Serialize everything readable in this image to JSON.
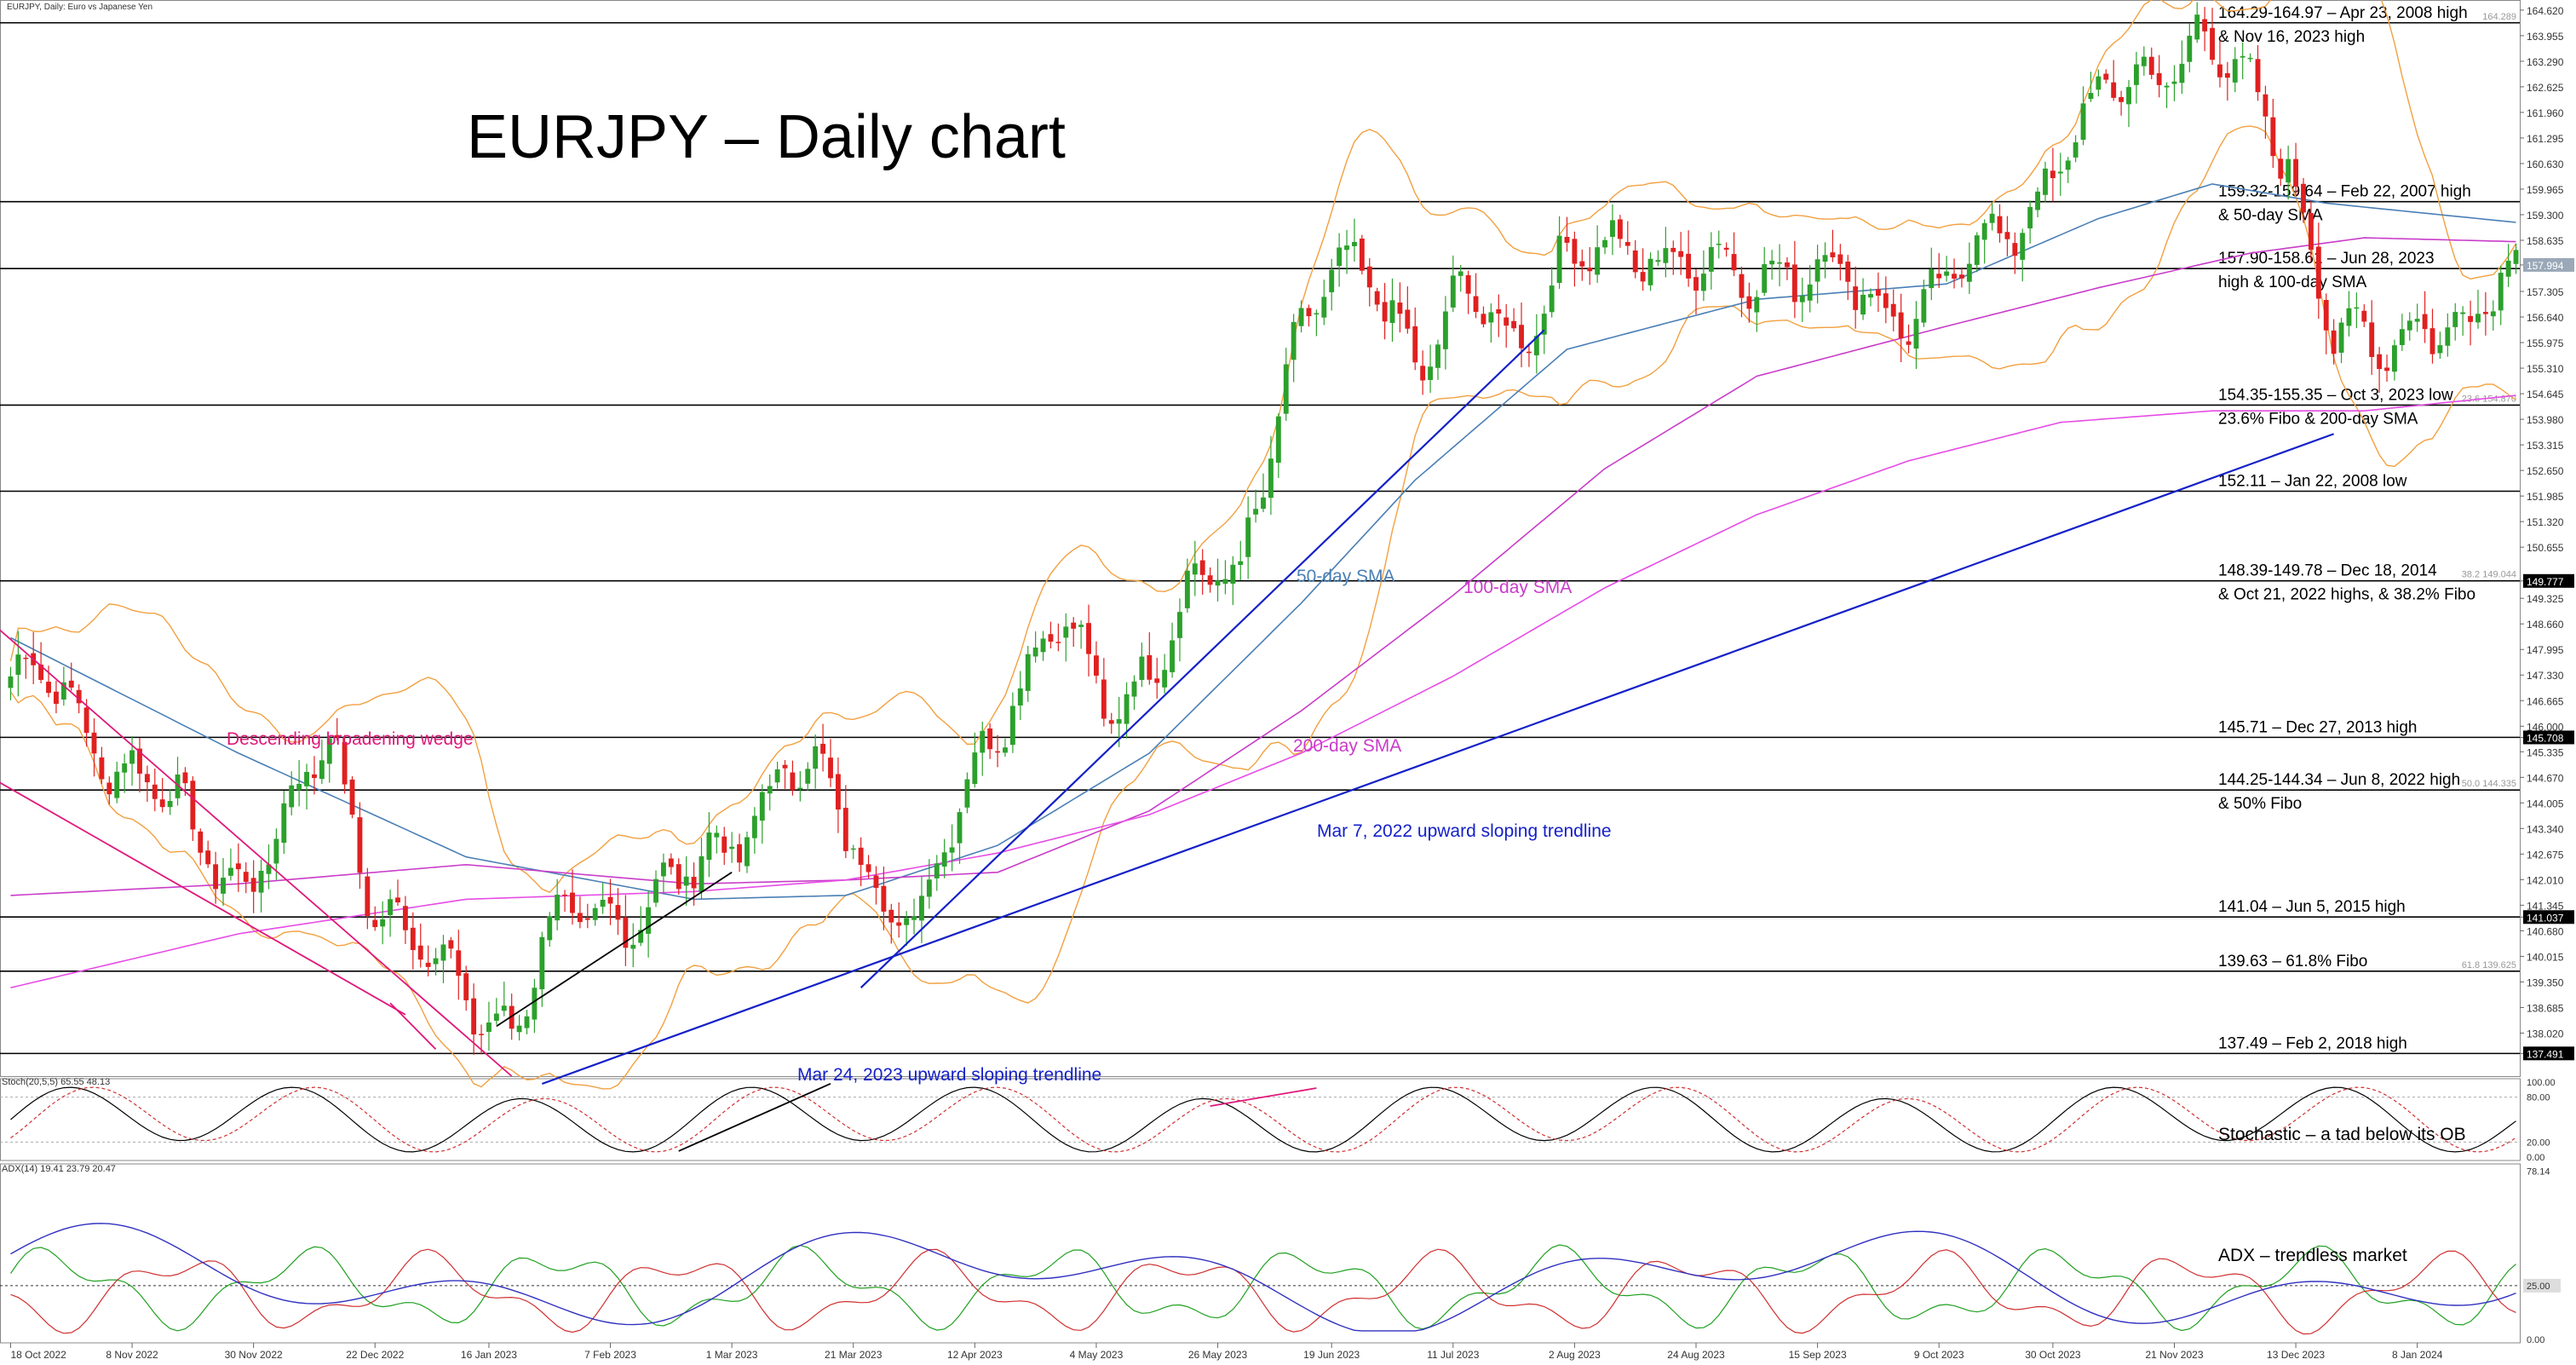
{
  "header": {
    "instrument_label": "EURJPY, Daily:  Euro vs Japanese Yen",
    "big_title": "EURJPY – Daily chart"
  },
  "colors": {
    "background": "#ffffff",
    "bull_candle": "#2ca02c",
    "bear_candle": "#e02020",
    "sma50": "#4a7fb5",
    "sma100": "#c93cc9",
    "sma200": "#e64ce6",
    "bollinger": "#f2a040",
    "trendline_blue": "#1420c8",
    "wedge": "#e0177a",
    "black_line": "#000000",
    "stoch_main": "#000000",
    "stoch_signal": "#d03030",
    "adx_main": "#3030c0",
    "adx_plus": "#20a020",
    "adx_minus": "#d03030"
  },
  "price_axis": {
    "ticks": [
      "164.620",
      "163.955",
      "163.290",
      "162.625",
      "161.960",
      "161.295",
      "160.630",
      "159.965",
      "159.300",
      "158.635",
      "157.994",
      "157.305",
      "156.640",
      "155.975",
      "155.310",
      "154.645",
      "153.980",
      "153.315",
      "152.650",
      "151.985",
      "151.320",
      "150.655",
      "149.777",
      "149.325",
      "148.660",
      "147.995",
      "147.330",
      "146.665",
      "146.000",
      "145.708",
      "145.335",
      "144.670",
      "144.005",
      "143.340",
      "142.675",
      "142.010",
      "141.345",
      "141.037",
      "140.680",
      "140.015",
      "139.350",
      "138.685",
      "138.020",
      "137.491"
    ],
    "highlight_current": "157.994"
  },
  "chart_data": {
    "type": "candlestick",
    "title": "EURJPY – Daily chart",
    "ylim": [
      136.9,
      164.75
    ],
    "x_tick_labels": [
      "18 Oct 2022",
      "8 Nov 2022",
      "30 Nov 2022",
      "22 Dec 2022",
      "16 Jan 2023",
      "7 Feb 2023",
      "1 Mar 2023",
      "21 Mar 2023",
      "12 Apr 2023",
      "4 May 2023",
      "26 May 2023",
      "19 Jun 2023",
      "11 Jul 2023",
      "2 Aug 2023",
      "24 Aug 2023",
      "15 Sep 2023",
      "9 Oct 2023",
      "30 Oct 2023",
      "21 Nov 2023",
      "13 Dec 2023",
      "8 Jan 2024"
    ],
    "close_path": [
      [
        0,
        147.3
      ],
      [
        6,
        146.9
      ],
      [
        12,
        145.5
      ],
      [
        18,
        144.6
      ],
      [
        24,
        143.1
      ],
      [
        30,
        142.1
      ],
      [
        36,
        143.2
      ],
      [
        42,
        145.8
      ],
      [
        48,
        141.5
      ],
      [
        54,
        140.1
      ],
      [
        60,
        139.0
      ],
      [
        66,
        138.3
      ],
      [
        72,
        140.8
      ],
      [
        78,
        141.1
      ],
      [
        84,
        141.5
      ],
      [
        90,
        142.0
      ],
      [
        96,
        143.4
      ],
      [
        102,
        145.0
      ],
      [
        108,
        144.1
      ],
      [
        114,
        142.0
      ],
      [
        120,
        140.9
      ],
      [
        126,
        144.4
      ],
      [
        132,
        147.2
      ],
      [
        138,
        148.7
      ],
      [
        144,
        146.4
      ],
      [
        150,
        147.8
      ],
      [
        156,
        149.4
      ],
      [
        162,
        150.1
      ],
      [
        168,
        155.5
      ],
      [
        174,
        157.5
      ],
      [
        180,
        157.8
      ],
      [
        186,
        155.4
      ],
      [
        192,
        157.1
      ],
      [
        198,
        156.2
      ],
      [
        204,
        157.9
      ],
      [
        210,
        158.2
      ],
      [
        216,
        158.6
      ],
      [
        222,
        157.9
      ],
      [
        228,
        157.5
      ],
      [
        234,
        158.2
      ],
      [
        240,
        157.7
      ],
      [
        246,
        156.7
      ],
      [
        252,
        157.2
      ],
      [
        258,
        158.0
      ],
      [
        264,
        159.0
      ],
      [
        270,
        161.0
      ],
      [
        276,
        162.2
      ],
      [
        282,
        163.1
      ],
      [
        288,
        164.0
      ],
      [
        294,
        162.5
      ],
      [
        300,
        161.0
      ],
      [
        306,
        156.2
      ],
      [
        312,
        155.5
      ],
      [
        318,
        156.9
      ],
      [
        324,
        156.3
      ],
      [
        330,
        157.9
      ]
    ],
    "ohlc": [],
    "series": [
      {
        "name": "50-day SMA",
        "values": [
          [
            0,
            148.3
          ],
          [
            30,
            145.3
          ],
          [
            60,
            142.6
          ],
          [
            90,
            141.5
          ],
          [
            110,
            141.6
          ],
          [
            130,
            142.9
          ],
          [
            150,
            145.3
          ],
          [
            170,
            149.2
          ],
          [
            185,
            152.4
          ],
          [
            205,
            155.8
          ],
          [
            230,
            157.1
          ],
          [
            255,
            157.5
          ],
          [
            275,
            159.2
          ],
          [
            290,
            160.1
          ],
          [
            305,
            159.6
          ],
          [
            330,
            159.1
          ]
        ]
      },
      {
        "name": "100-day SMA",
        "values": [
          [
            0,
            141.6
          ],
          [
            30,
            141.9
          ],
          [
            60,
            142.4
          ],
          [
            90,
            141.9
          ],
          [
            110,
            142.0
          ],
          [
            130,
            142.2
          ],
          [
            150,
            143.8
          ],
          [
            170,
            146.4
          ],
          [
            190,
            149.4
          ],
          [
            210,
            152.7
          ],
          [
            230,
            155.1
          ],
          [
            255,
            156.4
          ],
          [
            275,
            157.4
          ],
          [
            295,
            158.3
          ],
          [
            310,
            158.7
          ],
          [
            330,
            158.6
          ]
        ]
      },
      {
        "name": "200-day SMA",
        "values": [
          [
            0,
            139.2
          ],
          [
            30,
            140.6
          ],
          [
            60,
            141.5
          ],
          [
            90,
            141.7
          ],
          [
            110,
            142.0
          ],
          [
            130,
            142.7
          ],
          [
            150,
            143.7
          ],
          [
            170,
            145.3
          ],
          [
            190,
            147.3
          ],
          [
            210,
            149.6
          ],
          [
            230,
            151.5
          ],
          [
            250,
            152.9
          ],
          [
            270,
            153.9
          ],
          [
            290,
            154.2
          ],
          [
            310,
            154.2
          ],
          [
            330,
            154.6
          ]
        ]
      }
    ],
    "horizontal_levels": [
      {
        "price": 164.29,
        "label_line1": "164.29-164.97 – Apr 23, 2008 high",
        "label_line2": "& Nov 16, 2023 high",
        "right_tag": "164.289"
      },
      {
        "price": 159.64,
        "label_line1": "159.32-159.64 – Feb 22, 2007 high",
        "label_line2": "& 50-day SMA",
        "right_tag": ""
      },
      {
        "price": 157.9,
        "label_line1": "157.90-158.61 – Jun 28, 2023",
        "label_line2": "high & 100-day SMA",
        "right_tag": ""
      },
      {
        "price": 154.35,
        "label_line1": "154.35-155.35 – Oct 3, 2023 low",
        "label_line2": "23.6% Fibo & 200-day SMA",
        "right_tag": "23.6 154.870"
      },
      {
        "price": 152.11,
        "label_line1": "152.11 – Jan 22, 2008 low",
        "label_line2": "",
        "right_tag": ""
      },
      {
        "price": 149.78,
        "label_line1": "148.39-149.78 – Dec 18, 2014",
        "label_line2": "& Oct 21, 2022 highs, & 38.2% Fibo",
        "right_tag": "38.2 149.044"
      },
      {
        "price": 145.71,
        "label_line1": "145.71 – Dec 27, 2013 high",
        "label_line2": "",
        "right_tag": ""
      },
      {
        "price": 144.34,
        "label_line1": "144.25-144.34 – Jun 8, 2022 high",
        "label_line2": "& 50% Fibo",
        "right_tag": "50.0 144.335"
      },
      {
        "price": 141.04,
        "label_line1": "141.04 – Jun 5, 2015 high",
        "label_line2": "",
        "right_tag": ""
      },
      {
        "price": 139.63,
        "label_line1": "139.63 – 61.8% Fibo",
        "label_line2": "",
        "right_tag": "61.8 139.625"
      },
      {
        "price": 137.49,
        "label_line1": "137.49 – Feb 2, 2018 high",
        "label_line2": "",
        "right_tag": ""
      }
    ],
    "annotations": {
      "wedge": "Descending broadening wedge",
      "sma50": "50-day SMA",
      "sma100": "100-day SMA",
      "sma200": "200-day SMA",
      "trend_mar7": "Mar 7, 2022 upward sloping trendline",
      "trend_mar24": "Mar 24, 2023 upward sloping trendline"
    }
  },
  "stochastic": {
    "label": "Stoch(20,5,5) 65.55 48.13",
    "comment": "Stochastic – a tad below its OB",
    "ticks": [
      "100.00",
      "80.00",
      "20.00",
      "0.00"
    ]
  },
  "adx": {
    "label": "ADX(14) 19.41 23.79 20.47",
    "comment": "ADX – trendless market",
    "ticks": [
      "78.14",
      "25.00",
      "0.00"
    ]
  }
}
